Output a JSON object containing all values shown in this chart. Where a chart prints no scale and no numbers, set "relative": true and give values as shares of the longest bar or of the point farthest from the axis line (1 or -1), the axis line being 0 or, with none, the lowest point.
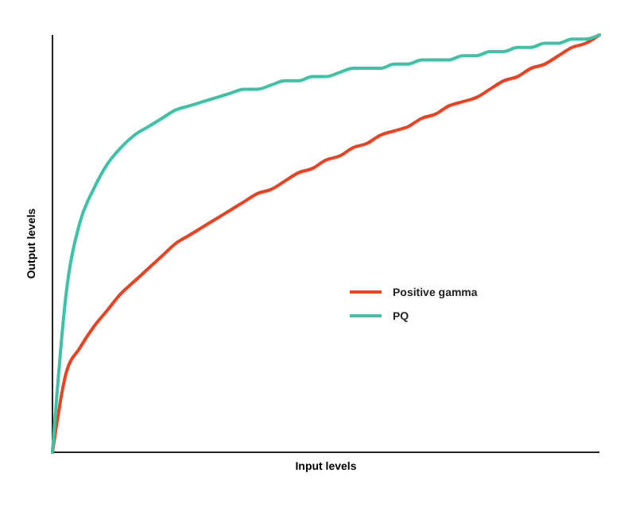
{
  "chart_data": {
    "type": "line",
    "relative": true,
    "xlabel": "Input levels",
    "ylabel": "Output levels",
    "legend": "right",
    "categories": [
      null,
      null,
      null,
      null,
      null,
      null,
      null,
      null,
      null,
      null,
      null,
      null,
      null,
      null,
      null,
      null,
      null,
      null,
      null,
      null,
      null,
      null,
      null,
      null,
      null,
      null,
      null,
      null,
      null,
      null,
      null,
      null,
      null,
      null,
      null,
      null,
      null,
      null,
      null,
      null,
      null
    ],
    "series": [
      {
        "name": "Positive gamma",
        "color": "#f0401f",
        "values": [
          0,
          0.19,
          0.25,
          0.3,
          0.34,
          0.38,
          0.41,
          0.44,
          0.47,
          0.5,
          0.52,
          0.54,
          0.56,
          0.58,
          0.6,
          0.62,
          0.63,
          0.65,
          0.67,
          0.68,
          0.7,
          0.71,
          0.73,
          0.74,
          0.76,
          0.77,
          0.78,
          0.8,
          0.81,
          0.83,
          0.84,
          0.85,
          0.87,
          0.89,
          0.9,
          0.92,
          0.93,
          0.95,
          0.97,
          0.98,
          1
        ]
      },
      {
        "name": "PQ",
        "color": "#3cc3a5",
        "values": [
          0,
          0.38,
          0.55,
          0.63,
          0.69,
          0.73,
          0.76,
          0.78,
          0.8,
          0.82,
          0.83,
          0.84,
          0.85,
          0.86,
          0.87,
          0.87,
          0.88,
          0.89,
          0.89,
          0.9,
          0.9,
          0.91,
          0.92,
          0.92,
          0.92,
          0.93,
          0.93,
          0.94,
          0.94,
          0.94,
          0.95,
          0.95,
          0.96,
          0.96,
          0.97,
          0.97,
          0.98,
          0.98,
          0.99,
          0.99,
          1
        ]
      }
    ]
  }
}
